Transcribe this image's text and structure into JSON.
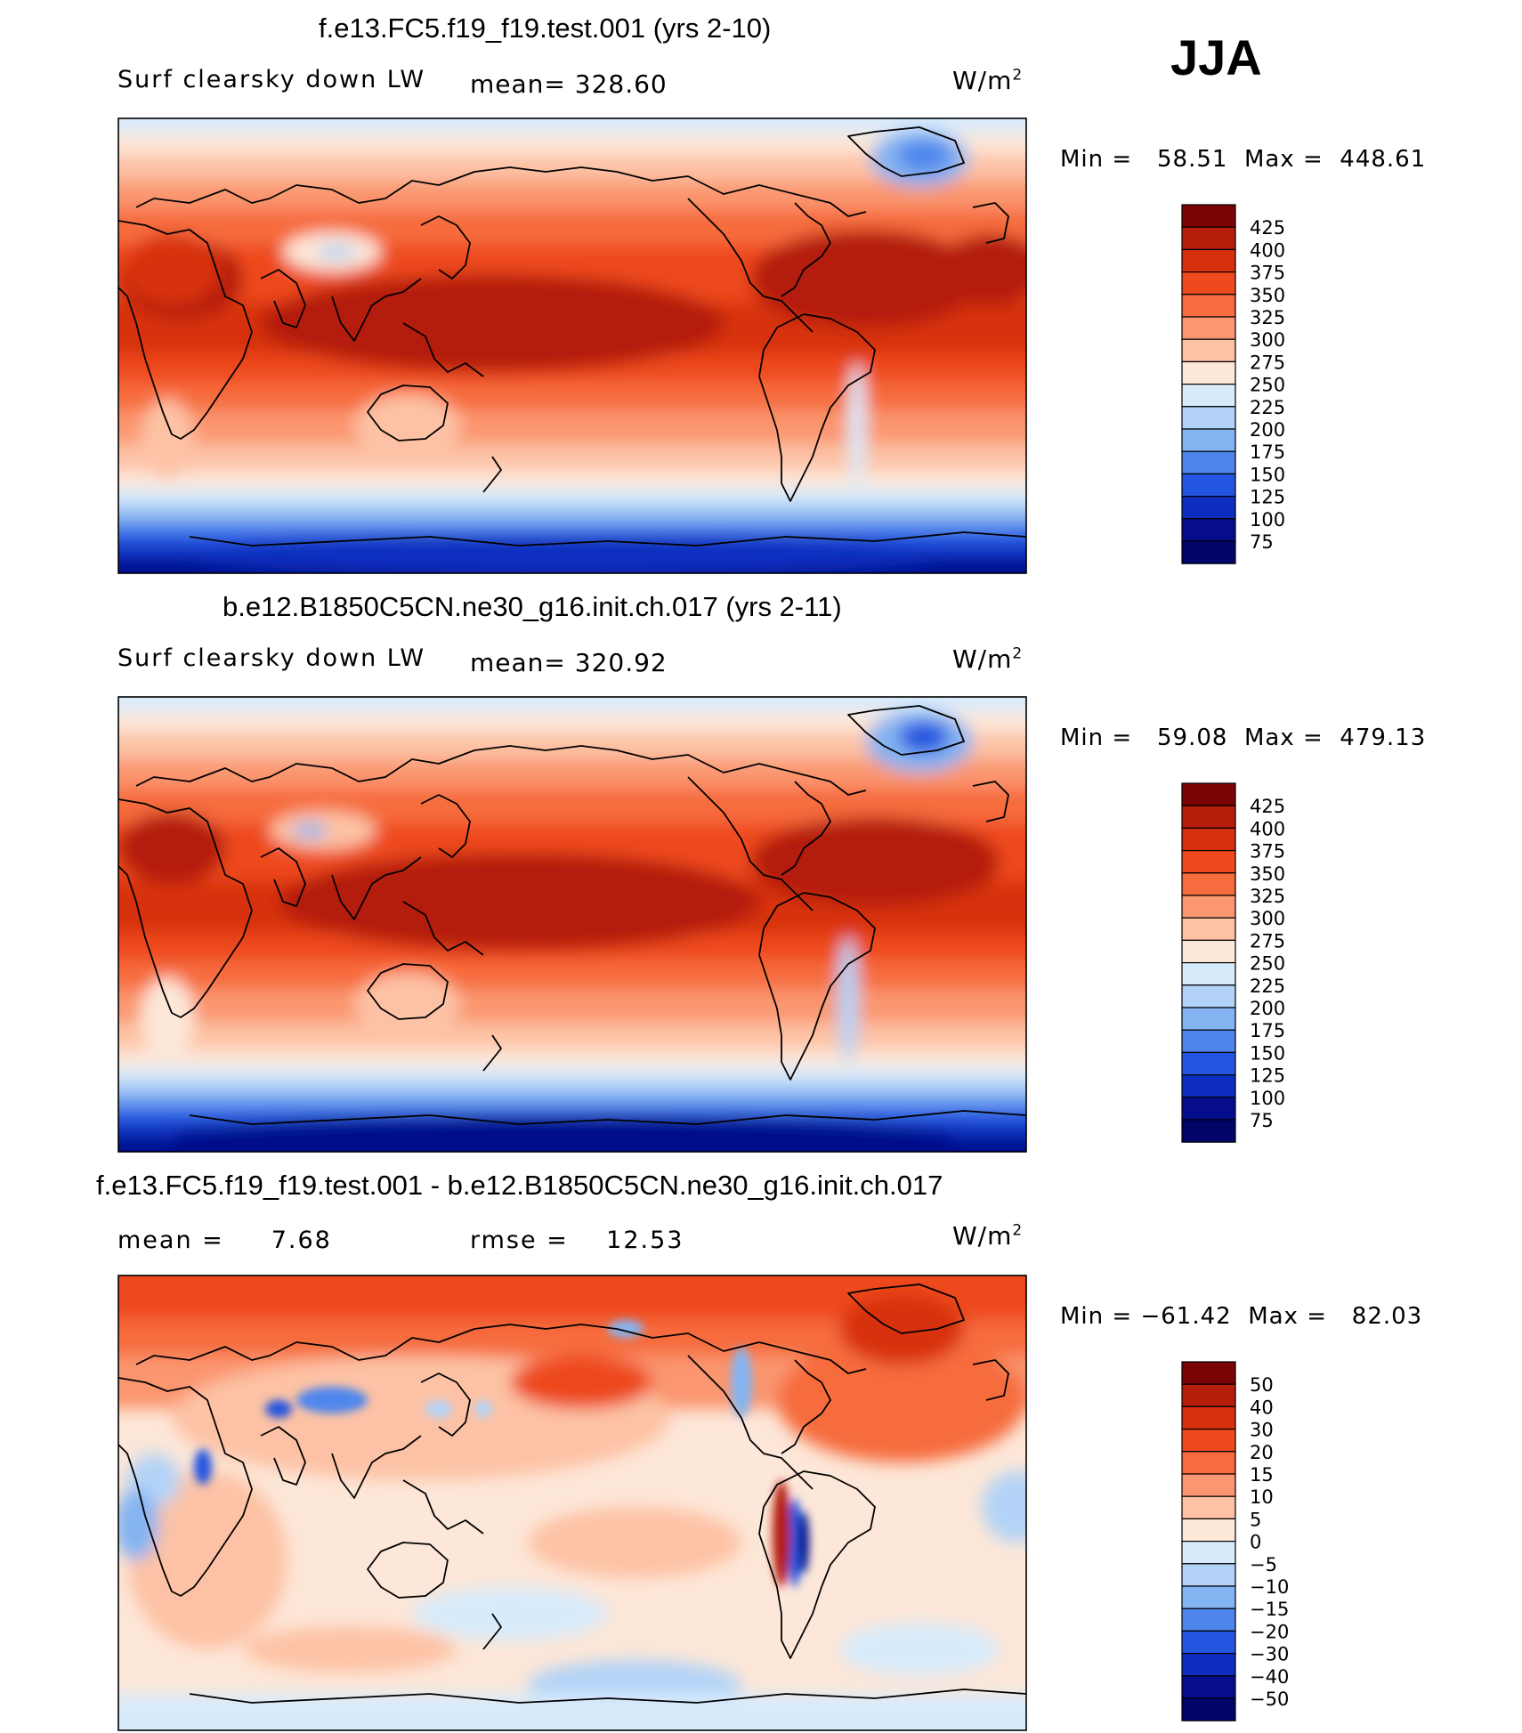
{
  "season": "JJA",
  "panels": [
    {
      "id": "p1",
      "title": "f.e13.FC5.f19_f19.test.001 (yrs 2-10)",
      "variable": "Surf clearsky down LW",
      "stat": "mean=  328.60",
      "units": "W/m",
      "units_exp": "2",
      "minmax": "Min =   58.51  Max =  448.61",
      "levels": [
        "425",
        "400",
        "375",
        "350",
        "325",
        "300",
        "275",
        "250",
        "225",
        "200",
        "175",
        "150",
        "125",
        "100",
        "75"
      ],
      "mean_value": 328.6,
      "min": 58.51,
      "max": 448.61
    },
    {
      "id": "p2",
      "title": "b.e12.B1850C5CN.ne30_g16.init.ch.017 (yrs 2-11)",
      "variable": "Surf clearsky down LW",
      "stat": "mean=  320.92",
      "units": "W/m",
      "units_exp": "2",
      "minmax": "Min =   59.08  Max =  479.13",
      "levels": [
        "425",
        "400",
        "375",
        "350",
        "325",
        "300",
        "275",
        "250",
        "225",
        "200",
        "175",
        "150",
        "125",
        "100",
        "75"
      ],
      "mean_value": 320.92,
      "min": 59.08,
      "max": 479.13
    },
    {
      "id": "p3",
      "title": "f.e13.FC5.f19_f19.test.001 - b.e12.B1850C5CN.ne30_g16.init.ch.017",
      "variable": "mean =     7.68",
      "stat": "rmse =    12.53",
      "units": "W/m",
      "units_exp": "2",
      "minmax": "Min = −61.42  Max =   82.03",
      "levels": [
        "50",
        "40",
        "30",
        "20",
        "15",
        "10",
        "5",
        "0",
        "−5",
        "−10",
        "−15",
        "−20",
        "−30",
        "−40",
        "−50"
      ],
      "mean_value": 7.68,
      "rmse_value": 12.53,
      "min": -61.42,
      "max": 82.03
    }
  ],
  "colors": {
    "colorbar": [
      "#7a0403",
      "#b41e0a",
      "#d7300c",
      "#ee4a1e",
      "#f66c3e",
      "#fa9670",
      "#fdc2a5",
      "#fde7d8",
      "#d8ebfb",
      "#b2d3f7",
      "#84b4f2",
      "#4f86ec",
      "#2455e0",
      "#0c2dbf",
      "#050d8c",
      "#020468"
    ],
    "coast": "#000000"
  }
}
